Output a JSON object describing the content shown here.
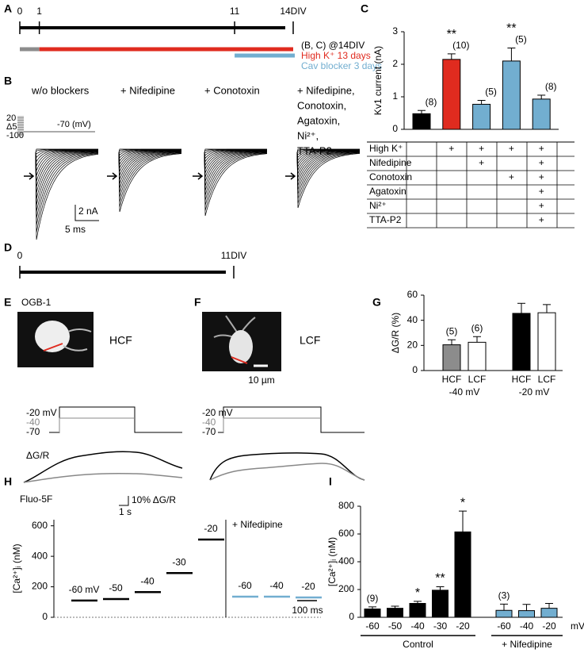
{
  "panel_a": {
    "label": "A",
    "xlim": [
      0,
      14
    ],
    "ticks": [
      0,
      1,
      11,
      {
        "value": 14,
        "label": "14DIV"
      }
    ],
    "legend": [
      {
        "text": "(B, C) @14DIV",
        "color": "#000000"
      },
      {
        "text": "High K⁺ 13 days",
        "color": "#e02b1f"
      },
      {
        "text": "Cav blocker 3 days",
        "color": "#72aed0"
      }
    ]
  },
  "panel_b": {
    "label": "B",
    "conditions": [
      [
        "w/o blockers"
      ],
      [
        "+ Nifedipine"
      ],
      [
        "+ Conotoxin"
      ],
      [
        "+ Nifedipine,",
        "Conotoxin,",
        "Agatoxin,",
        "Ni²⁺,",
        "TTA-P2"
      ]
    ],
    "protocol_steps": [
      "20",
      "Δ5",
      "-100"
    ],
    "holding": "-70 (mV)",
    "scale_current": "2 nA",
    "scale_time": "5 ms"
  },
  "panel_d": {
    "label": "D",
    "xlim": [
      0,
      11
    ],
    "ticks": [
      0,
      {
        "value": 11,
        "label": "11DIV"
      }
    ]
  },
  "panel_e": {
    "label": "E",
    "dye": "OGB-1",
    "condition": "HCF",
    "protocol": [
      "-20 mV",
      "-40",
      "-70"
    ],
    "signal_label": "ΔG/R",
    "scale_amp": "10% ΔG/R",
    "scale_time": "1 s"
  },
  "panel_f": {
    "label": "F",
    "condition": "LCF",
    "protocol": [
      "-20 mV",
      "-40",
      "-70"
    ],
    "scale_bar": "10 µm"
  },
  "chart_data": [
    {
      "type": "bar",
      "label": "C",
      "y_label": "Kv1 current (nA)",
      "values": [
        0.48,
        2.15,
        0.77,
        2.1,
        0.93
      ],
      "errors": [
        0.1,
        0.17,
        0.12,
        0.4,
        0.12
      ],
      "colors": [
        "#000000",
        "#e02b1f",
        "#72aed0",
        "#72aed0",
        "#72aed0"
      ],
      "n_labels": [
        "(8)",
        "(10)",
        "(5)",
        "(5)",
        "(8)"
      ],
      "significance": [
        null,
        "**",
        null,
        "**",
        null
      ],
      "ylim": [
        0,
        3
      ],
      "yticks": [
        0,
        1,
        2,
        3
      ],
      "table": {
        "rows": [
          {
            "label": "High K⁺",
            "cells": [
              null,
              "+",
              "+",
              "+",
              "+"
            ]
          },
          {
            "label": "Nifedipine",
            "cells": [
              null,
              null,
              "+",
              null,
              "+"
            ]
          },
          {
            "label": "Conotoxin",
            "cells": [
              null,
              null,
              null,
              "+",
              "+"
            ]
          },
          {
            "label": "Agatoxin",
            "cells": [
              null,
              null,
              null,
              null,
              "+"
            ]
          },
          {
            "label": "Ni²⁺",
            "cells": [
              null,
              null,
              null,
              null,
              "+"
            ]
          },
          {
            "label": "TTA-P2",
            "cells": [
              null,
              null,
              null,
              null,
              "+"
            ]
          }
        ]
      }
    },
    {
      "type": "bar",
      "label": "G",
      "y_label": "ΔG/R (%)",
      "categories": [
        "HCF",
        "LCF",
        "HCF",
        "LCF"
      ],
      "groups": [
        "-40 mV",
        "-20 mV"
      ],
      "values": [
        20.5,
        22.5,
        45.5,
        46
      ],
      "errors": [
        4,
        4.5,
        8,
        6.5
      ],
      "colors": [
        "#8c8c8c",
        "#ffffff",
        "#000000",
        "#ffffff"
      ],
      "n_labels": [
        "(5)",
        "(6)",
        null,
        null
      ],
      "ylim": [
        0,
        60
      ],
      "yticks": [
        0,
        20,
        40,
        60
      ]
    },
    {
      "type": "trace",
      "label": "H",
      "dye": "Fluo-5F",
      "y_label": "[Ca²⁺]ᵢ (nM)",
      "ylim": [
        0,
        640
      ],
      "yticks": [
        0,
        200,
        400,
        600
      ],
      "scale_time": "100 ms",
      "series": [
        {
          "labels": [
            "-60 mV",
            "-50",
            "-40",
            "-30",
            "-20"
          ],
          "values": [
            110,
            120,
            165,
            290,
            510
          ],
          "color": "#000000"
        },
        {
          "title": "+ Nifedipine",
          "labels": [
            "-60",
            "-40",
            "-20"
          ],
          "values": [
            135,
            135,
            130
          ],
          "color": "#72aed0"
        }
      ]
    },
    {
      "type": "bar",
      "label": "I",
      "y_label": "[Ca²⁺]ᵢ (nM)",
      "categories": [
        "-60",
        "-50",
        "-40",
        "-30",
        "-20",
        "-60",
        "-40",
        "-20"
      ],
      "unit": "mV",
      "groups": [
        "Control",
        "+ Nifedipine"
      ],
      "values": [
        60,
        65,
        100,
        195,
        615,
        50,
        48,
        65
      ],
      "errors": [
        15,
        15,
        15,
        25,
        150,
        45,
        45,
        35
      ],
      "colors": [
        "#000000",
        "#000000",
        "#000000",
        "#000000",
        "#000000",
        "#72aed0",
        "#72aed0",
        "#72aed0"
      ],
      "annotations": [
        "(9)",
        null,
        "*",
        "**",
        "*",
        "(3)",
        null,
        null
      ],
      "ylim": [
        0,
        800
      ],
      "yticks": [
        0,
        200,
        400,
        600,
        800
      ]
    }
  ]
}
